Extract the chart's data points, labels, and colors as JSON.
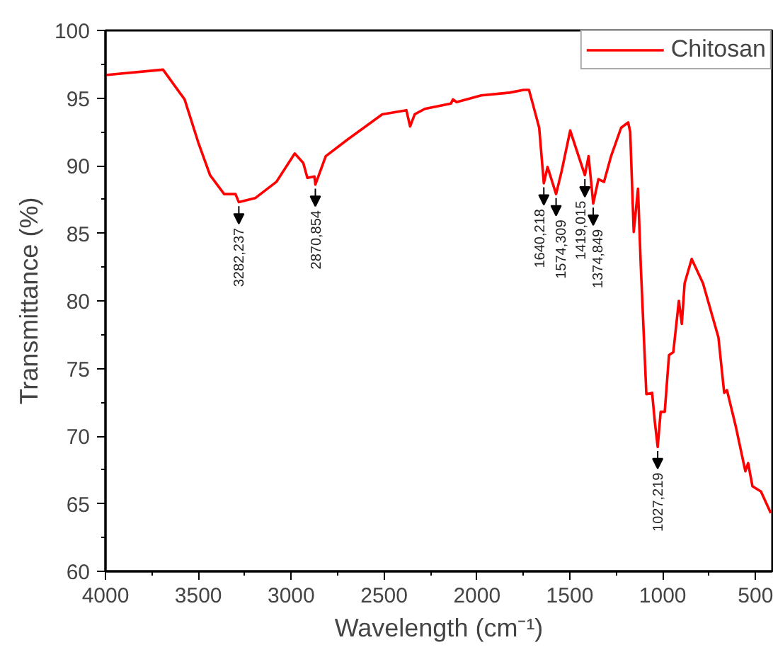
{
  "chart_data": {
    "type": "line",
    "xlabel": "Wavelength (cm⁻¹)",
    "ylabel": "Transmittance (%)",
    "xlim": [
      4000,
      410
    ],
    "ylim": [
      60,
      100
    ],
    "xticks": [
      4000,
      3500,
      3000,
      2500,
      2000,
      1500,
      1000,
      500
    ],
    "yticks": [
      60,
      65,
      70,
      75,
      80,
      85,
      90,
      95,
      100
    ],
    "grid": false,
    "legend": "top right",
    "line_style": "solid",
    "marker": "none",
    "series": [
      {
        "name": "Chitosan",
        "color": "#ff0000",
        "x": [
          4000,
          3690,
          3574,
          3500,
          3437,
          3361,
          3300,
          3282,
          3194,
          3080,
          2981,
          2935,
          2913,
          2875,
          2870,
          2814,
          2700,
          2510,
          2380,
          2360,
          2335,
          2281,
          2140,
          2129,
          2110,
          1977,
          1825,
          1749,
          1720,
          1700,
          1665,
          1640,
          1620,
          1574,
          1544,
          1498,
          1460,
          1419,
          1399,
          1374,
          1346,
          1316,
          1278,
          1224,
          1186,
          1175,
          1156,
          1133,
          1118,
          1088,
          1057,
          1042,
          1027,
          1011,
          989,
          966,
          943,
          913,
          897,
          882,
          844,
          783,
          700,
          669,
          654,
          608,
          555,
          540,
          517,
          471,
          418
        ],
        "values": [
          96.7,
          97.1,
          94.9,
          91.7,
          89.3,
          87.9,
          87.9,
          87.3,
          87.6,
          88.8,
          90.9,
          90.2,
          89.1,
          89.2,
          88.6,
          90.7,
          91.9,
          93.8,
          94.1,
          92.9,
          93.8,
          94.2,
          94.6,
          94.9,
          94.7,
          95.2,
          95.4,
          95.6,
          95.6,
          94.6,
          92.8,
          88.7,
          89.9,
          87.9,
          89.6,
          92.6,
          91.0,
          89.3,
          90.7,
          87.2,
          89.0,
          88.8,
          90.7,
          92.8,
          93.2,
          92.5,
          85.1,
          88.3,
          82.6,
          73.1,
          73.2,
          71.0,
          69.2,
          71.8,
          71.8,
          76.0,
          76.2,
          80.0,
          78.3,
          81.3,
          83.1,
          81.3,
          77.3,
          73.2,
          73.4,
          70.8,
          67.4,
          68.0,
          66.3,
          65.9,
          64.3
        ]
      }
    ],
    "annotations": [
      {
        "text": "3282,237",
        "x": 3282,
        "y": 87.3
      },
      {
        "text": "2870,854",
        "x": 2870,
        "y": 88.6
      },
      {
        "text": "1640,218",
        "x": 1640,
        "y": 88.7
      },
      {
        "text": "1574,309",
        "x": 1574,
        "y": 87.9
      },
      {
        "text": "1419,015",
        "x": 1419,
        "y": 89.3
      },
      {
        "text": "1374,849",
        "x": 1374,
        "y": 87.2
      },
      {
        "text": "1027,219",
        "x": 1027,
        "y": 69.2
      }
    ]
  }
}
